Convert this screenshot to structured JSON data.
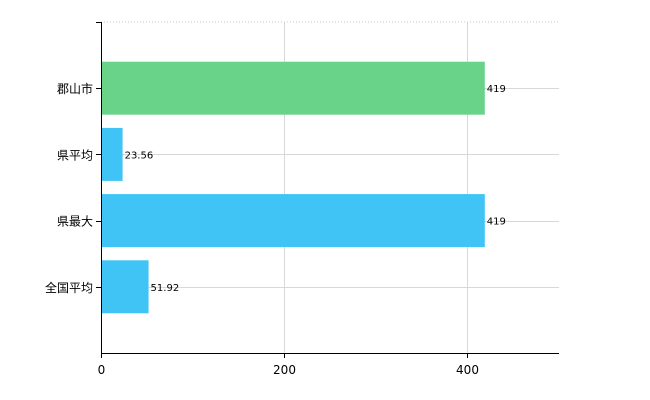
{
  "chart_data": {
    "type": "bar",
    "orientation": "horizontal",
    "categories": [
      "郡山市",
      "県平均",
      "県最大",
      "全国平均"
    ],
    "values": [
      419,
      23.56,
      419,
      51.92
    ],
    "value_labels": [
      "419",
      "23.56",
      "419",
      "51.92"
    ],
    "colors": [
      "#6ad38a",
      "#40c4f5",
      "#40c4f5",
      "#40c4f5"
    ],
    "xlim": [
      0,
      500
    ],
    "x_ticks": [
      0,
      200,
      400
    ],
    "x_tick_labels": [
      "0",
      "200",
      "400"
    ],
    "grid": true,
    "legend": "none"
  }
}
